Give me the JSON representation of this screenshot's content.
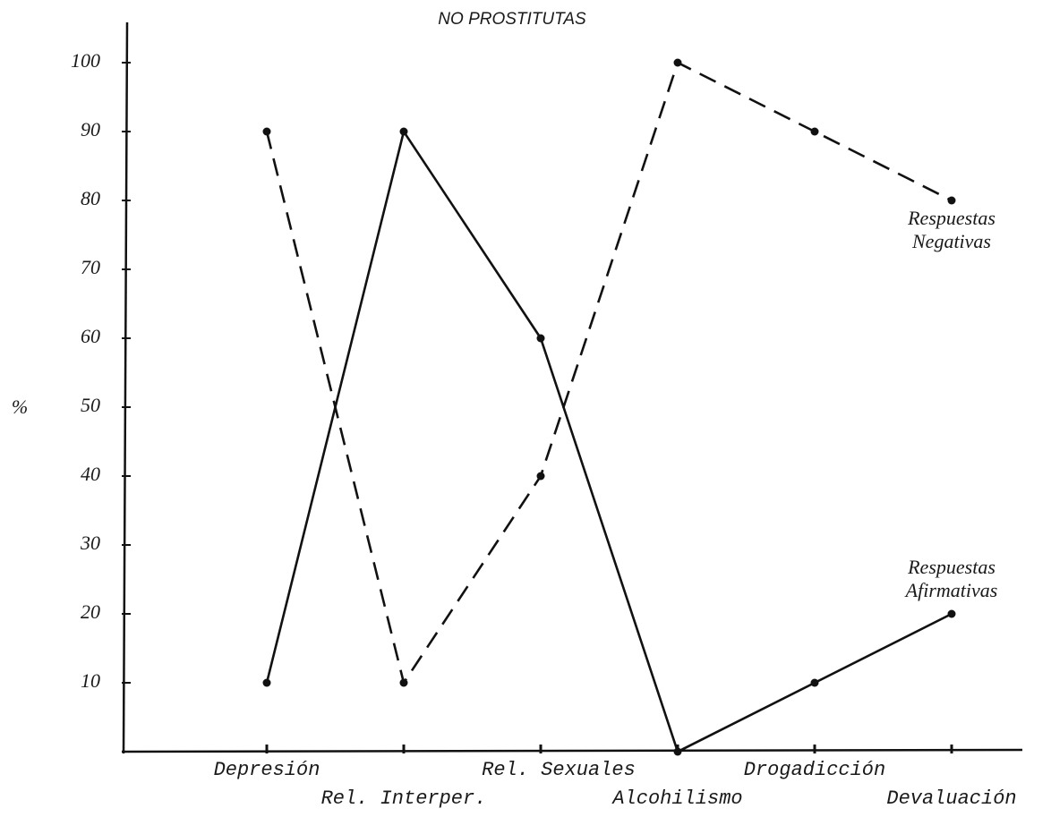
{
  "chart_data": {
    "type": "line",
    "title": "NO PROSTITUTAS",
    "y_label": "%",
    "categories": [
      "Depresión",
      "Rel. Interper.",
      "Rel. Sexuales",
      "Alcohilismo",
      "Drogadicción",
      "Devaluación"
    ],
    "series": [
      {
        "name": "Respuestas Negativas",
        "color": "#111111",
        "style": "dashed",
        "values": [
          90,
          10,
          40,
          100,
          90,
          80
        ]
      },
      {
        "name": "Respuestas Afirmativas",
        "color": "#111111",
        "style": "solid",
        "values": [
          10,
          90,
          60,
          0,
          10,
          20
        ]
      }
    ],
    "ylim": [
      0,
      100
    ],
    "yticks": [
      10,
      20,
      30,
      40,
      50,
      60,
      70,
      80,
      90,
      100
    ],
    "grid": false
  }
}
